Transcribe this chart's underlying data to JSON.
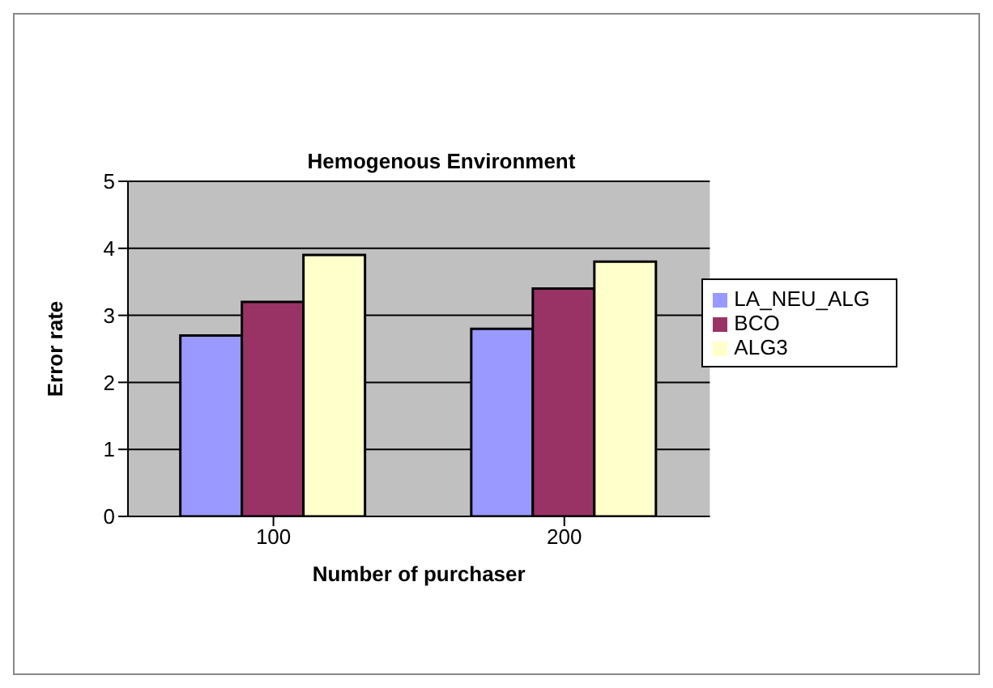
{
  "chart_data": {
    "type": "bar",
    "title": "Hemogenous Environment",
    "xlabel": "Number of purchaser",
    "ylabel": "Error rate",
    "categories": [
      "100",
      "200"
    ],
    "series": [
      {
        "name": "LA_NEU_ALG",
        "color": "#9999ff",
        "values": [
          2.7,
          2.8
        ]
      },
      {
        "name": "BCO",
        "color": "#993366",
        "values": [
          3.2,
          3.4
        ]
      },
      {
        "name": "ALG3",
        "color": "#ffffcc",
        "values": [
          3.9,
          3.8
        ]
      }
    ],
    "ylim": [
      0,
      5
    ],
    "yticks": [
      0,
      1,
      2,
      3,
      4,
      5
    ],
    "grid": "y",
    "legend": "right"
  }
}
